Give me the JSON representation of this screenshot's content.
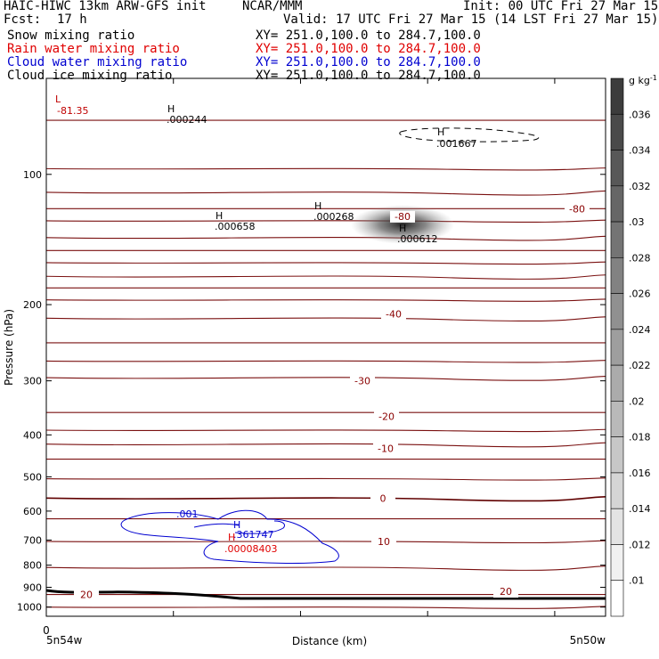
{
  "header": {
    "model": "HAIC-HIWC 13km ARW-GFS init",
    "org": "NCAR/MMM",
    "init": "Init: 00 UTC Fri 27 Mar 15",
    "fcst_label": "Fcst:",
    "fcst_value": "17 h",
    "valid": "Valid: 17 UTC Fri 27 Mar 15 (14 LST Fri 27 Mar 15)",
    "fields": [
      {
        "name": "Snow mixing ratio",
        "xy": "XY= 251.0,100.0 to 284.7,100.0",
        "color": "#000000"
      },
      {
        "name": "Rain water mixing ratio",
        "xy": "XY= 251.0,100.0 to 284.7,100.0",
        "color": "#e00000"
      },
      {
        "name": "Cloud water mixing ratio",
        "xy": "XY= 251.0,100.0 to 284.7,100.0",
        "color": "#0000d0"
      },
      {
        "name": "Cloud ice mixing ratio",
        "xy": "XY= 251.0,100.0 to 284.7,100.0",
        "color": "#000000"
      }
    ]
  },
  "chart_data": {
    "type": "cross-section",
    "xlabel": "Distance (km)",
    "ylabel": "Pressure (hPa)",
    "x_tick_labels": [
      "0"
    ],
    "x_start_label": "5n54w",
    "x_end_label": "5n50w",
    "y_ticks": [
      100,
      200,
      300,
      400,
      500,
      600,
      700,
      800,
      900,
      1000
    ],
    "ylim": [
      1050,
      60
    ],
    "y_scale": "log",
    "colorbar": {
      "unit": "g kg",
      "unit_exp": "-1",
      "labels": [
        ".036",
        ".034",
        ".032",
        ".03",
        ".028",
        ".026",
        ".024",
        ".022",
        ".02",
        ".018",
        ".016",
        ".014",
        ".012",
        ".01"
      ]
    },
    "temperature_labels": [
      {
        "value": "-80",
        "p": 125
      },
      {
        "value": "-80",
        "p": 120
      },
      {
        "value": "-40",
        "p": 210
      },
      {
        "value": "-30",
        "p": 300
      },
      {
        "value": "-20",
        "p": 362
      },
      {
        "value": "-10",
        "p": 430
      },
      {
        "value": "0",
        "p": 560
      },
      {
        "value": "10",
        "p": 705
      },
      {
        "value": "20",
        "p": 935
      },
      {
        "value": "20",
        "p": 920
      }
    ],
    "extrema": [
      {
        "mark": "L",
        "value": "-81.35",
        "color": "#c00000"
      },
      {
        "mark": "H",
        "value": ".000244",
        "color": "#000000"
      },
      {
        "mark": "H",
        "value": ".001667",
        "color": "#000000"
      },
      {
        "mark": "H",
        "value": ".000658",
        "color": "#000000"
      },
      {
        "mark": "H",
        "value": ".000268",
        "color": "#000000"
      },
      {
        "mark": "H",
        "value": ".000612",
        "color": "#000000"
      },
      {
        "mark": "H",
        "value": ".361747",
        "color": "#0000d0"
      },
      {
        "mark": "H",
        "value": ".00008403",
        "color": "#e00000"
      }
    ],
    "cloud_water_contour": ".001",
    "isotherm_pressures": [
      75,
      97,
      110,
      120,
      128,
      140,
      150,
      160,
      172,
      183,
      195,
      215,
      245,
      270,
      295,
      355,
      390,
      420,
      455,
      505,
      560,
      625,
      705,
      810,
      935,
      1000
    ]
  }
}
